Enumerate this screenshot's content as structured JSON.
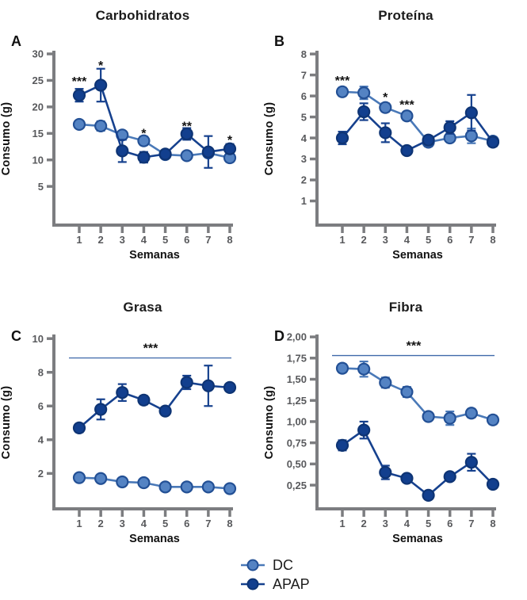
{
  "figure": {
    "background": "#ffffff"
  },
  "axis_style": {
    "axis_color": "#7c7d80",
    "tick_label_color": "#58595c",
    "sig_color": "#111111",
    "sig_line_color": "#3f69a9"
  },
  "legend": {
    "items": [
      {
        "label": "DC",
        "marker_fill": "#5483c3",
        "marker_stroke": "#235095",
        "line_color": "#4a79b8"
      },
      {
        "label": "APAP",
        "marker_fill": "#123f8e",
        "marker_stroke": "#0e3474",
        "line_color": "#16418e"
      }
    ]
  },
  "chart_data": [
    {
      "panel": "A",
      "type": "line",
      "title": "Carbohidratos",
      "xlabel": "Semanas",
      "ylabel": "Consumo (g)",
      "x": [
        1,
        2,
        3,
        4,
        5,
        6,
        7,
        8
      ],
      "ylim": [
        -2.3,
        30.3
      ],
      "yticks": {
        "values": [
          5,
          10,
          15,
          20,
          25,
          30
        ],
        "labels": [
          "5",
          "10",
          "15",
          "20",
          "25",
          "30"
        ]
      },
      "series": [
        {
          "name": "DC",
          "values": [
            16.7,
            16.4,
            14.7,
            13.6,
            11.0,
            10.8,
            11.3,
            10.4
          ],
          "errors": [
            0.5,
            0.9,
            0.6,
            0.8,
            0.5,
            0.4,
            0.5,
            0.8
          ]
        },
        {
          "name": "APAP",
          "values": [
            22.2,
            24.1,
            11.7,
            10.5,
            11.1,
            14.9,
            11.5,
            12.1
          ],
          "errors": [
            1.2,
            3.1,
            2.1,
            1.0,
            0.6,
            1.1,
            3.0,
            0.9
          ]
        }
      ],
      "significance": [
        {
          "week": 1,
          "y": 24.9,
          "label": "***"
        },
        {
          "week": 2,
          "y": 27.9,
          "label": "*"
        },
        {
          "week": 4,
          "y": 15.1,
          "label": "*"
        },
        {
          "week": 6,
          "y": 16.4,
          "label": "**"
        },
        {
          "week": 8,
          "y": 13.8,
          "label": "*"
        }
      ]
    },
    {
      "panel": "B",
      "type": "line",
      "title": "Proteína",
      "xlabel": "Semanas",
      "ylabel": "Consumo (g)",
      "x": [
        1,
        2,
        3,
        4,
        5,
        6,
        7,
        8
      ],
      "ylim": [
        -0.15,
        8.08
      ],
      "yticks": {
        "values": [
          1,
          2,
          3,
          4,
          5,
          6,
          7,
          8
        ],
        "labels": [
          "1",
          "2",
          "3",
          "4",
          "5",
          "6",
          "7",
          "8"
        ]
      },
      "series": [
        {
          "name": "DC",
          "values": [
            6.2,
            6.15,
            5.45,
            5.05,
            3.8,
            4.0,
            4.1,
            3.85
          ],
          "errors": [
            0.2,
            0.3,
            0.2,
            0.2,
            0.2,
            0.15,
            0.35,
            0.2
          ]
        },
        {
          "name": "APAP",
          "values": [
            4.0,
            5.25,
            4.25,
            3.4,
            3.9,
            4.5,
            5.2,
            3.8
          ],
          "errors": [
            0.3,
            0.4,
            0.45,
            0.12,
            0.2,
            0.3,
            0.85,
            0.2
          ]
        }
      ],
      "significance": [
        {
          "week": 1,
          "y": 6.75,
          "label": "***"
        },
        {
          "week": 3,
          "y": 5.95,
          "label": "*"
        },
        {
          "week": 4,
          "y": 5.6,
          "label": "***"
        }
      ]
    },
    {
      "panel": "C",
      "type": "line",
      "title": "Grasa",
      "xlabel": "Semanas",
      "ylabel": "Consumo (g)",
      "x": [
        1,
        2,
        3,
        4,
        5,
        6,
        7,
        8
      ],
      "ylim": [
        -0.1,
        10.15
      ],
      "yticks": {
        "values": [
          2,
          4,
          6,
          8,
          10
        ],
        "labels": [
          "2",
          "4",
          "6",
          "8",
          "10"
        ]
      },
      "series": [
        {
          "name": "DC",
          "values": [
            1.75,
            1.7,
            1.5,
            1.45,
            1.2,
            1.2,
            1.2,
            1.1
          ],
          "errors": [
            0.15,
            0.1,
            0.08,
            0.08,
            0.05,
            0.05,
            0.05,
            0.06
          ]
        },
        {
          "name": "APAP",
          "values": [
            4.7,
            5.8,
            6.8,
            6.35,
            5.7,
            7.4,
            7.2,
            7.1
          ],
          "errors": [
            0.25,
            0.6,
            0.5,
            0.25,
            0.12,
            0.4,
            1.2,
            0.12
          ]
        }
      ],
      "significance": [],
      "sig_line": {
        "from": 1,
        "to": 8,
        "y": 8.85,
        "label": "***",
        "label_y": 9.45
      }
    },
    {
      "panel": "D",
      "type": "line",
      "title": "Fibra",
      "xlabel": "Semanas",
      "ylabel": "Consumo (g)",
      "x": [
        1,
        2,
        3,
        4,
        5,
        6,
        7,
        8
      ],
      "ylim": [
        -0.03,
        2.01
      ],
      "yticks": {
        "values": [
          0.25,
          0.5,
          0.75,
          1.0,
          1.25,
          1.5,
          1.75,
          2.0
        ],
        "labels": [
          "0,25",
          "0,50",
          "0,75",
          "1,00",
          "1,25",
          "1,50",
          "1,75",
          "2,00"
        ]
      },
      "series": [
        {
          "name": "DC",
          "values": [
            1.63,
            1.62,
            1.46,
            1.35,
            1.06,
            1.04,
            1.1,
            1.02
          ],
          "errors": [
            0.05,
            0.09,
            0.06,
            0.06,
            0.04,
            0.08,
            0.05,
            0.05
          ]
        },
        {
          "name": "APAP",
          "values": [
            0.72,
            0.9,
            0.4,
            0.33,
            0.13,
            0.35,
            0.52,
            0.26
          ],
          "errors": [
            0.06,
            0.1,
            0.08,
            0.04,
            0.03,
            0.03,
            0.1,
            0.04
          ]
        }
      ],
      "significance": [],
      "sig_line": {
        "from": 1,
        "to": 8,
        "y": 1.78,
        "label": "***",
        "label_y": 1.9
      }
    }
  ]
}
